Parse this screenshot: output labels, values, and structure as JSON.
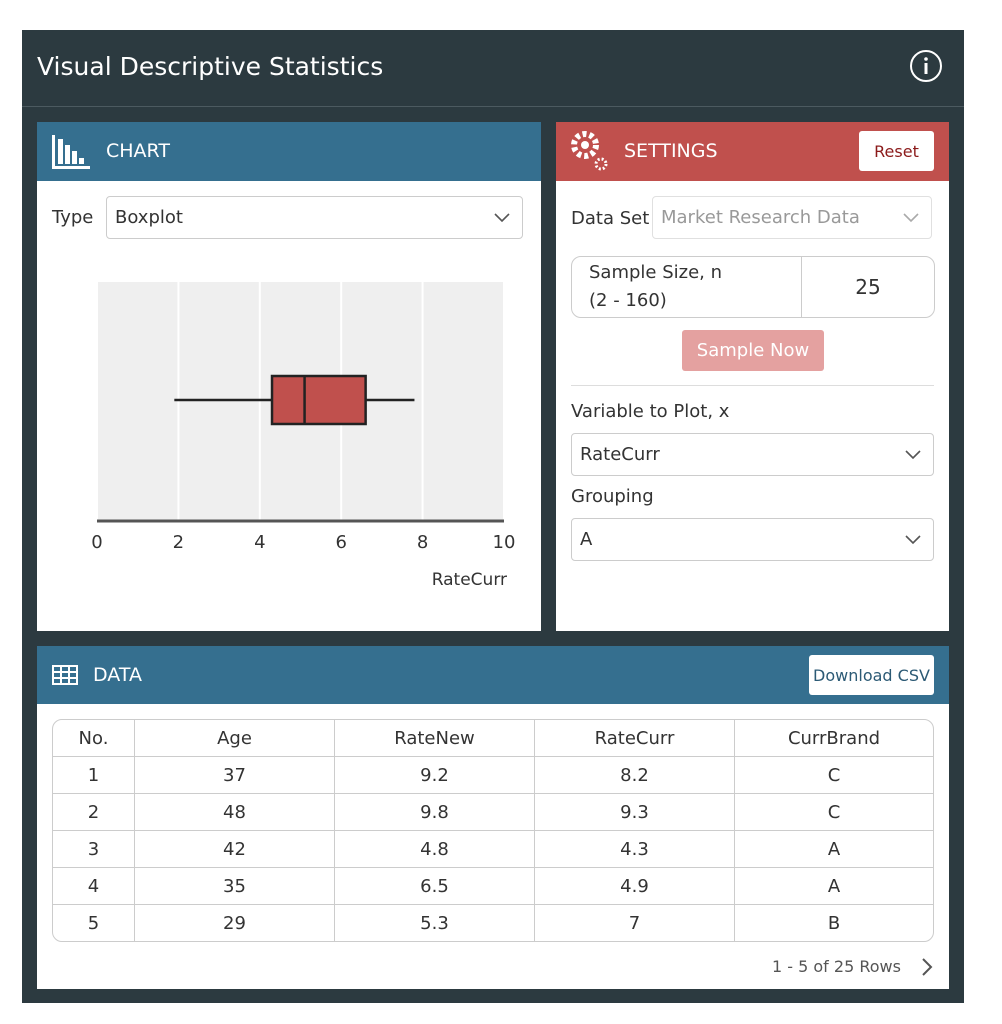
{
  "header": {
    "title": "Visual Descriptive Statistics"
  },
  "chart_panel": {
    "title": "CHART",
    "type_label": "Type",
    "type_value": "Boxplot"
  },
  "chart_data": {
    "type": "boxplot",
    "x_label": "RateCurr",
    "xlim": [
      0,
      10
    ],
    "xticks": [
      0,
      2,
      4,
      6,
      8,
      10
    ],
    "grid": true,
    "color": "#c0504d",
    "min": 1.9,
    "q1": 4.3,
    "median": 5.1,
    "q3": 6.6,
    "max": 7.8
  },
  "settings": {
    "title": "SETTINGS",
    "reset": "Reset",
    "data_set_label": "Data Set",
    "data_set_value": "Market Research Data",
    "sample_size_label": "Sample Size, n",
    "sample_size_range": "(2 - 160)",
    "sample_size_value": 25,
    "sample_button": "Sample Now",
    "variable_label": "Variable to Plot, x",
    "variable_value": "RateCurr",
    "grouping_label": "Grouping",
    "grouping_value": "A"
  },
  "data_panel": {
    "title": "DATA",
    "download": "Download CSV",
    "columns": [
      "No.",
      "Age",
      "RateNew",
      "RateCurr",
      "CurrBrand"
    ],
    "rows": [
      [
        1,
        37,
        9.2,
        8.2,
        "C"
      ],
      [
        2,
        48,
        9.8,
        9.3,
        "C"
      ],
      [
        3,
        42,
        4.8,
        4.3,
        "A"
      ],
      [
        4,
        35,
        6.5,
        4.9,
        "A"
      ],
      [
        5,
        29,
        5.3,
        7,
        "B"
      ]
    ],
    "pagination": "1 - 5 of 25 Rows"
  }
}
